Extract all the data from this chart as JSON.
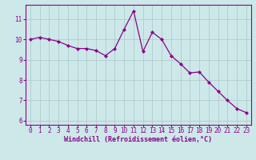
{
  "x": [
    0,
    1,
    2,
    3,
    4,
    5,
    6,
    7,
    8,
    9,
    10,
    11,
    12,
    13,
    14,
    15,
    16,
    17,
    18,
    19,
    20,
    21,
    22,
    23
  ],
  "y": [
    10.0,
    10.1,
    10.0,
    9.9,
    9.7,
    9.55,
    9.55,
    9.45,
    9.2,
    9.55,
    10.5,
    11.4,
    9.4,
    10.35,
    10.0,
    9.2,
    8.8,
    8.35,
    8.4,
    7.9,
    7.45,
    7.0,
    6.6,
    6.4
  ],
  "line_color": "#8B008B",
  "marker": "D",
  "marker_size": 2.0,
  "bg_color": "#cce8e8",
  "grid_color": "#b0cccc",
  "xlabel": "Windchill (Refroidissement éolien,°C)",
  "xlabel_color": "#8B008B",
  "tick_color": "#8B008B",
  "spine_color": "#8B008B",
  "ylim": [
    5.8,
    11.7
  ],
  "xlim": [
    -0.5,
    23.5
  ],
  "yticks": [
    6,
    7,
    8,
    9,
    10,
    11
  ],
  "xticks": [
    0,
    1,
    2,
    3,
    4,
    5,
    6,
    7,
    8,
    9,
    10,
    11,
    12,
    13,
    14,
    15,
    16,
    17,
    18,
    19,
    20,
    21,
    22,
    23
  ],
  "tick_fontsize": 5.5,
  "xlabel_fontsize": 6.0
}
